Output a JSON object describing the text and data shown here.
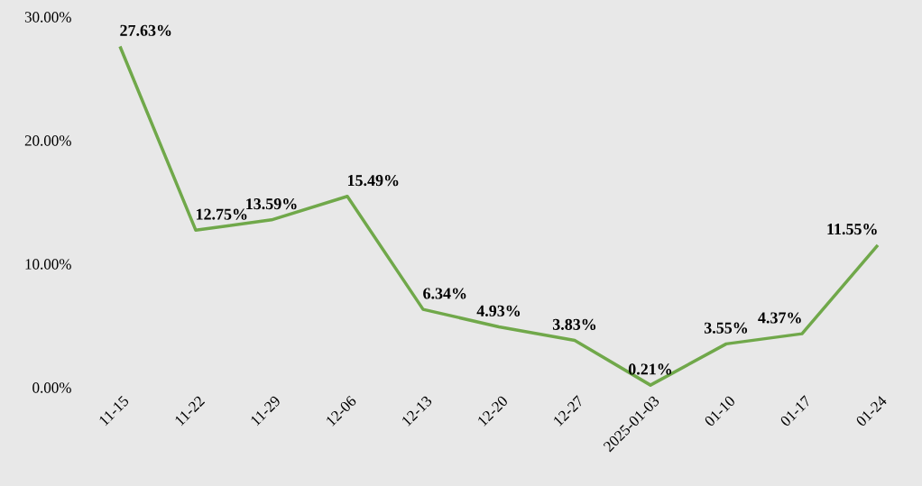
{
  "chart_data": {
    "type": "line",
    "categories": [
      "11-15",
      "11-22",
      "11-29",
      "12-06",
      "12-13",
      "12-20",
      "12-27",
      "2025-01-03",
      "01-10",
      "01-17",
      "01-24"
    ],
    "values": [
      27.63,
      12.75,
      13.59,
      15.49,
      6.34,
      4.93,
      3.83,
      0.21,
      3.55,
      4.37,
      11.55
    ],
    "value_labels": [
      "27.63%",
      "12.75%",
      "13.59%",
      "15.49%",
      "6.34%",
      "4.93%",
      "3.83%",
      "0.21%",
      "3.55%",
      "4.37%",
      "11.55%"
    ],
    "color": "#70a84a",
    "ylim": [
      0,
      30
    ],
    "yticks": [
      {
        "value": 0,
        "label": "0.00%"
      },
      {
        "value": 10,
        "label": "10.00%"
      },
      {
        "value": 20,
        "label": "20.00%"
      },
      {
        "value": 30,
        "label": "30.00%"
      }
    ],
    "grid": false,
    "marker": "none",
    "line_style": "solid"
  }
}
